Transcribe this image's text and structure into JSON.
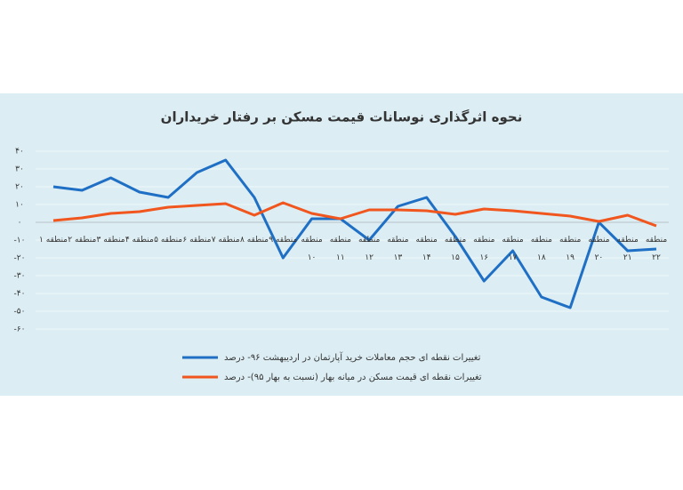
{
  "chart_data": {
    "type": "line",
    "title": "نحوه اثرگذاری نوسانات قیمت مسکن بر رفتار خریداران",
    "categories": [
      "منطقه ۱",
      "منطقه ۲",
      "منطقه ۳",
      "منطقه ۴",
      "منطقه ۵",
      "منطقه ۶",
      "منطقه ۷",
      "منطقه ۸",
      "منطقه ۹",
      "منطقه ۱۰",
      "منطقه ۱۱",
      "منطقه ۱۲",
      "منطقه ۱۳",
      "منطقه ۱۴",
      "منطقه ۱۵",
      "منطقه ۱۶",
      "منطقه ۱۷",
      "منطقه ۱۸",
      "منطقه ۱۹",
      "منطقه ۲۰",
      "منطقه ۲۱",
      "منطقه ۲۲"
    ],
    "series": [
      {
        "name": "تغییرات نقطه ای حجم معاملات خرید آپارتمان در اردیبهشت ۹۶- درصد",
        "color": "#1f6fc5",
        "values": [
          20,
          18,
          25,
          17,
          14,
          28,
          35,
          14,
          -20,
          2,
          2,
          -10,
          9,
          14,
          -8,
          -33,
          -16,
          -42,
          -48,
          0,
          -16,
          -15
        ]
      },
      {
        "name": "تغییرات نقطه ای قیمت مسکن در میانه بهار (نسبت به بهار ۹۵)- درصد",
        "color": "#f0561e",
        "values": [
          1,
          2.5,
          5,
          6,
          8.5,
          9.5,
          10.5,
          4,
          11,
          5,
          2,
          7,
          7,
          6.5,
          4.5,
          7.5,
          6.5,
          5,
          3.5,
          0.5,
          4,
          -2
        ]
      }
    ],
    "ylim": [
      -60,
      40
    ],
    "yticks": [
      {
        "value": -60,
        "label": "-۶۰"
      },
      {
        "value": -50,
        "label": "-۵۰"
      },
      {
        "value": -40,
        "label": "-۴۰"
      },
      {
        "value": -30,
        "label": "-۳۰"
      },
      {
        "value": -20,
        "label": "-۲۰"
      },
      {
        "value": -10,
        "label": "-۱۰"
      },
      {
        "value": 0,
        "label": "۰"
      },
      {
        "value": 10,
        "label": "۱۰"
      },
      {
        "value": 20,
        "label": "۲۰"
      },
      {
        "value": 30,
        "label": "۳۰"
      },
      {
        "value": 40,
        "label": "۴۰"
      }
    ],
    "grid": true
  }
}
